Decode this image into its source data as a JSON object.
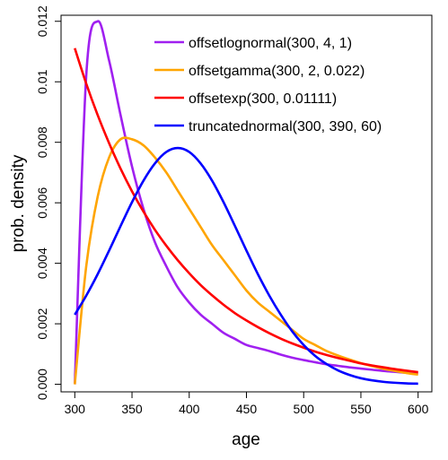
{
  "chart_data": {
    "type": "line",
    "xlabel": "age",
    "ylabel": "prob. density",
    "xlim": [
      288,
      612
    ],
    "ylim": [
      -0.00025,
      0.0122
    ],
    "x_ticks": [
      300,
      350,
      400,
      450,
      500,
      550,
      600
    ],
    "x_tick_labels": [
      "300",
      "350",
      "400",
      "450",
      "500",
      "550",
      "600"
    ],
    "y_ticks": [
      0,
      0.002,
      0.004,
      0.006,
      0.008,
      0.01,
      0.012
    ],
    "y_tick_labels": [
      "0.000",
      "0.002",
      "0.004",
      "0.006",
      "0.008",
      "0.01",
      "0.012"
    ],
    "grid": false,
    "legend_position": "top-right",
    "legend_border": false,
    "x": [
      300,
      310,
      320,
      330,
      340,
      350,
      360,
      370,
      380,
      390,
      400,
      410,
      420,
      430,
      440,
      450,
      460,
      470,
      480,
      490,
      500,
      510,
      520,
      530,
      540,
      550,
      560,
      570,
      580,
      590,
      600
    ],
    "series": [
      {
        "name": "offsetlognormal(300, 4, 1)",
        "color": "#A020F0",
        "values": [
          0.0,
          0.0102,
          0.012,
          0.0107,
          0.0089,
          0.0072,
          0.0058,
          0.0047,
          0.0039,
          0.0032,
          0.0027,
          0.0023,
          0.002,
          0.0017,
          0.0015,
          0.0013,
          0.0012,
          0.0011,
          0.00098,
          0.00088,
          0.0008,
          0.00073,
          0.00066,
          0.00061,
          0.00056,
          0.00052,
          0.00048,
          0.00044,
          0.00041,
          0.00038,
          0.00036
        ]
      },
      {
        "name": "offsetgamma(300, 2, 0.022)",
        "color": "#FFA500",
        "values": [
          0.0,
          0.0039,
          0.0062,
          0.0075,
          0.0081,
          0.0081,
          0.0079,
          0.0075,
          0.007,
          0.0064,
          0.0058,
          0.0052,
          0.0046,
          0.0041,
          0.0036,
          0.0031,
          0.0027,
          0.0024,
          0.0021,
          0.0018,
          0.0015,
          0.0013,
          0.0011,
          0.00095,
          0.00082,
          0.0007,
          0.0006,
          0.00051,
          0.00044,
          0.00037,
          0.00032
        ]
      },
      {
        "name": "offsetexp(300, 0.01111)",
        "color": "#FF0000",
        "values": [
          0.01111,
          0.00994,
          0.0089,
          0.00797,
          0.00713,
          0.00638,
          0.00571,
          0.00511,
          0.00458,
          0.0041,
          0.00367,
          0.00328,
          0.00294,
          0.00263,
          0.00235,
          0.00211,
          0.00189,
          0.00169,
          0.00151,
          0.00135,
          0.00121,
          0.00108,
          0.00097,
          0.00087,
          0.00078,
          0.00069,
          0.00062,
          0.00056,
          0.0005,
          0.00045,
          0.0004
        ]
      },
      {
        "name": "truncatednormal(300, 390, 60)",
        "color": "#0000FF",
        "values": [
          0.0023,
          0.00293,
          0.00364,
          0.00442,
          0.00523,
          0.00602,
          0.00673,
          0.0073,
          0.00768,
          0.00781,
          0.00768,
          0.0073,
          0.00673,
          0.00602,
          0.00523,
          0.00442,
          0.00364,
          0.00293,
          0.0023,
          0.00175,
          0.0013,
          0.00094,
          0.00067,
          0.00046,
          0.00031,
          0.0002,
          0.00013,
          8e-05,
          5e-05,
          3e-05,
          2e-05
        ]
      }
    ]
  }
}
